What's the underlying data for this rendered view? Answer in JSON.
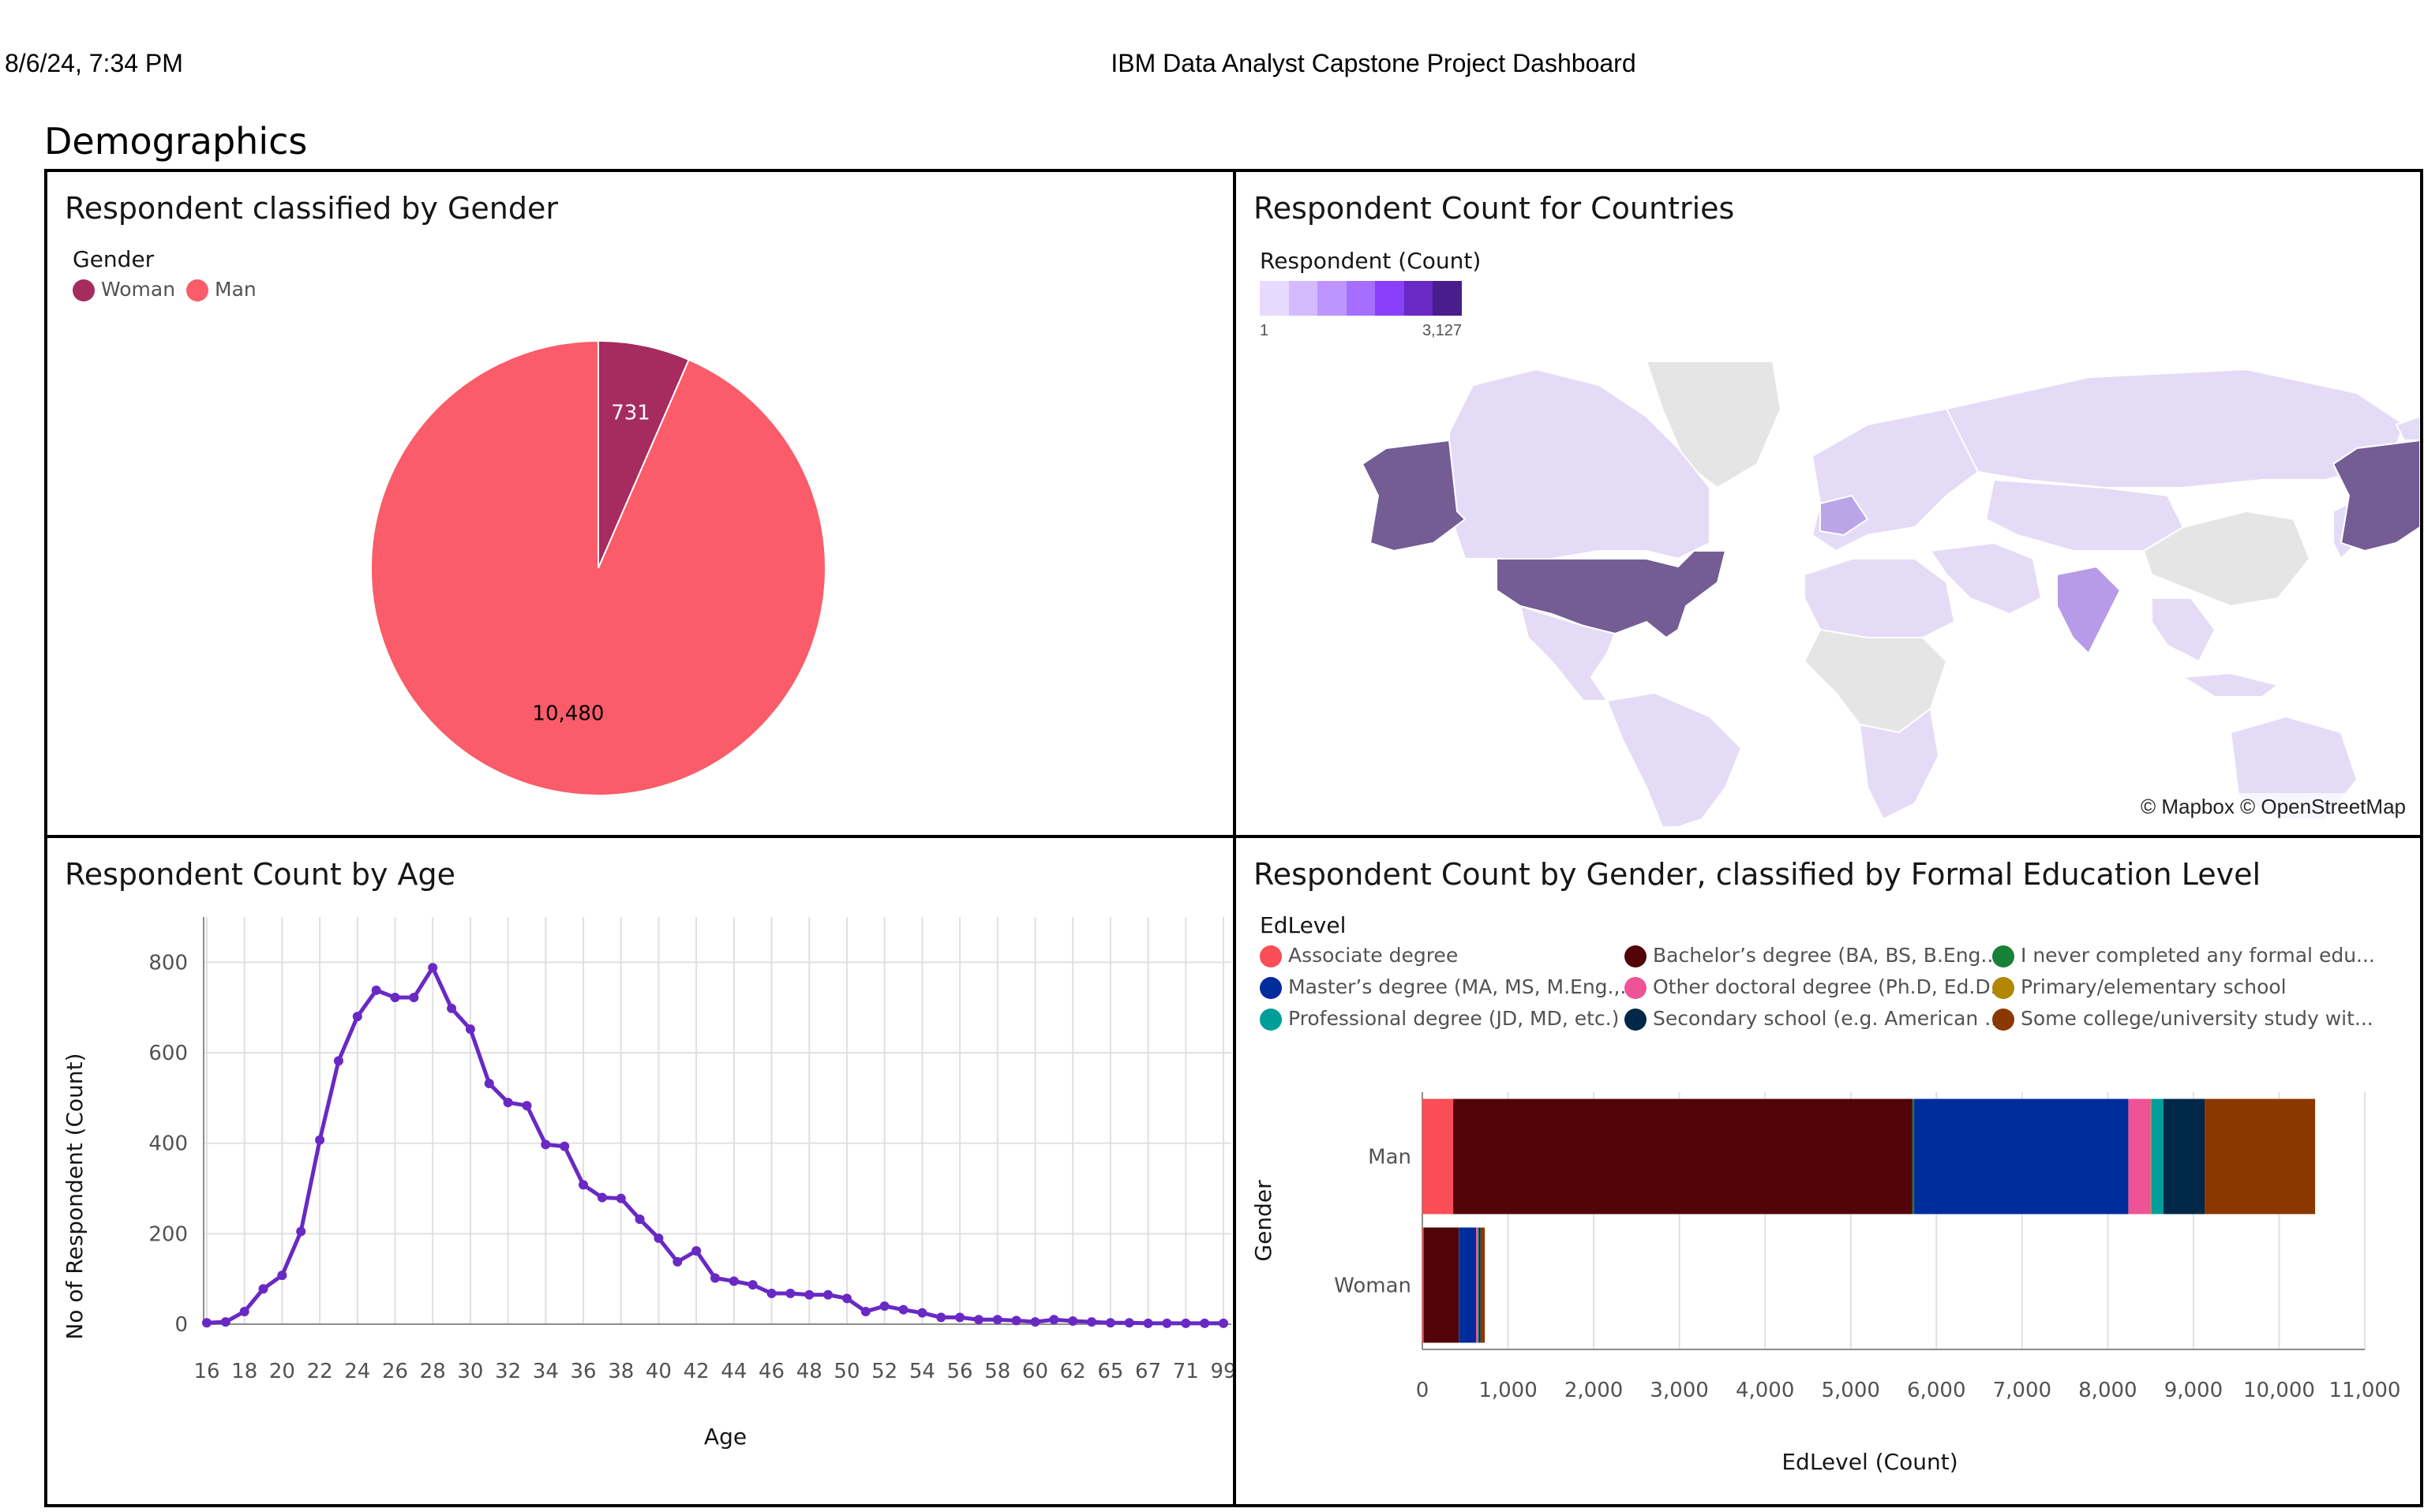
{
  "header": {
    "date": "8/6/24, 7:34 PM",
    "title": "IBM Data Analyst Capstone Project Dashboard"
  },
  "section_title": "Demographics",
  "colors": {
    "woman": "#a62b5f",
    "man": "#fa5c69",
    "line": "#6929c4",
    "map_land": "#e4dcf7",
    "map_nodata": "#e5e5e5",
    "map_us": "#735d94"
  },
  "panels": {
    "gender": {
      "title": "Respondent classified by Gender",
      "legend_title": "Gender"
    },
    "countries": {
      "title": "Respondent Count for Countries",
      "legend_title": "Respondent (Count)",
      "scale_min": "1",
      "scale_max": "3,127",
      "attribution": "© Mapbox © OpenStreetMap"
    },
    "age": {
      "title": "Respondent Count by Age"
    },
    "edlevel": {
      "title": "Respondent Count by Gender, classified by Formal Education Level",
      "legend_title": "EdLevel"
    }
  },
  "chart_data": [
    {
      "type": "pie",
      "title": "Respondent classified by Gender",
      "legend_title": "Gender",
      "labels": [
        "Woman",
        "Man"
      ],
      "values": [
        731,
        10480
      ],
      "value_labels": [
        "731",
        "10,480"
      ],
      "colors": [
        "#a62b5f",
        "#fa5c69"
      ]
    },
    {
      "type": "line",
      "title": "Respondent Count by Age",
      "xlabel": "Age",
      "ylabel": "No of Respondent (Count)",
      "ylim": [
        0,
        900
      ],
      "yticks": [
        0,
        200,
        400,
        600,
        800
      ],
      "grid": true,
      "x": [
        "16",
        "17",
        "18",
        "19",
        "20",
        "21",
        "22",
        "23",
        "24",
        "25",
        "26",
        "27",
        "28",
        "29",
        "30",
        "31",
        "32",
        "33",
        "34",
        "35",
        "36",
        "37",
        "38",
        "39",
        "40",
        "41",
        "42",
        "43",
        "44",
        "45",
        "46",
        "47",
        "48",
        "49",
        "50",
        "51",
        "52",
        "53",
        "54",
        "55",
        "56",
        "57",
        "58",
        "59",
        "60",
        "61",
        "62",
        "63",
        "65",
        "66",
        "67",
        "68",
        "71",
        "72",
        "99"
      ],
      "xtick_labels": [
        "16",
        "18",
        "20",
        "22",
        "24",
        "26",
        "28",
        "30",
        "32",
        "34",
        "36",
        "38",
        "40",
        "42",
        "44",
        "46",
        "48",
        "50",
        "52",
        "54",
        "56",
        "58",
        "60",
        "62",
        "65",
        "67",
        "71",
        "99"
      ],
      "series": [
        {
          "values": [
            3,
            5,
            28,
            78,
            108,
            205,
            407,
            582,
            680,
            738,
            722,
            722,
            788,
            698,
            652,
            532,
            490,
            483,
            397,
            393,
            308,
            280,
            278,
            232,
            190,
            138,
            162,
            102,
            95,
            87,
            68,
            68,
            65,
            65,
            57,
            28,
            40,
            32,
            25,
            15,
            15,
            10,
            10,
            8,
            5,
            10,
            7,
            5,
            3,
            3,
            2,
            2,
            2,
            2,
            2
          ]
        }
      ]
    },
    {
      "type": "bar",
      "orientation": "horizontal",
      "stacked": true,
      "title": "Respondent Count by Gender, classified by Formal Education Level",
      "xlabel": "EdLevel (Count)",
      "ylabel": "Gender",
      "xlim": [
        0,
        11000
      ],
      "xtick_labels": [
        "0",
        "1,000",
        "2,000",
        "3,000",
        "4,000",
        "5,000",
        "6,000",
        "7,000",
        "8,000",
        "9,000",
        "10,000",
        "11,000"
      ],
      "categories": [
        "Man",
        "Woman"
      ],
      "legend_title": "EdLevel",
      "series": [
        {
          "name": "Associate degree",
          "legend_label": "Associate degree",
          "color": "#fa4d56",
          "values": [
            360,
            15
          ]
        },
        {
          "name": "Bachelor's degree",
          "legend_label": "Bachelor’s degree (BA, BS, B.Eng....",
          "color": "#520408",
          "values": [
            5360,
            410
          ]
        },
        {
          "name": "I never completed any formal education",
          "legend_label": "I never completed any formal edu...",
          "color": "#198038",
          "values": [
            20,
            2
          ]
        },
        {
          "name": "Master's degree",
          "legend_label": "Master’s degree (MA, MS, M.Eng.,...",
          "color": "#002d9c",
          "values": [
            2500,
            200
          ]
        },
        {
          "name": "Other doctoral degree",
          "legend_label": "Other doctoral degree (Ph.D, Ed.D...",
          "color": "#ee5396",
          "values": [
            260,
            20
          ]
        },
        {
          "name": "Primary/elementary school",
          "legend_label": "Primary/elementary school",
          "color": "#b28600",
          "values": [
            10,
            2
          ]
        },
        {
          "name": "Professional degree",
          "legend_label": "Professional degree (JD, MD, etc.)",
          "color": "#009d9a",
          "values": [
            140,
            10
          ]
        },
        {
          "name": "Secondary school",
          "legend_label": "Secondary school (e.g. American ...",
          "color": "#012749",
          "values": [
            480,
            20
          ]
        },
        {
          "name": "Some college/university study",
          "legend_label": "Some college/university study wit...",
          "color": "#8a3800",
          "values": [
            1290,
            50
          ]
        }
      ]
    }
  ]
}
